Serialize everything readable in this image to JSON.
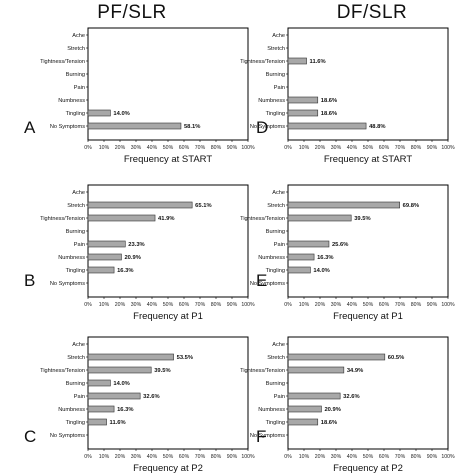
{
  "column_titles": [
    "PF/SLR",
    "DF/SLR"
  ],
  "colors": {
    "bar_fill": "#a8a8a8",
    "bar_stroke": "#333333",
    "frame": "#000000"
  },
  "chart_data": [
    {
      "type": "bar",
      "orientation": "horizontal",
      "panel": "A",
      "categories": [
        "Ache",
        "Stretch",
        "Tightness/Tension",
        "Burning",
        "Pain",
        "Numbness",
        "Tingling",
        "No Symptoms"
      ],
      "values": [
        0,
        0,
        0,
        0,
        0,
        0,
        14.0,
        58.1
      ],
      "value_labels": [
        "",
        "",
        "",
        "",
        "",
        "",
        "14.0%",
        "58.1%"
      ],
      "xlabel": "Frequency at START",
      "xticks": [
        "0%",
        "10%",
        "20%",
        "30%",
        "40%",
        "50%",
        "60%",
        "70%",
        "80%",
        "90%",
        "100%"
      ],
      "xlim": [
        0,
        100
      ]
    },
    {
      "type": "bar",
      "orientation": "horizontal",
      "panel": "D",
      "categories": [
        "Ache",
        "Stretch",
        "Tightness/Tension",
        "Burning",
        "Pain",
        "Numbness",
        "Tingling",
        "No Symptoms"
      ],
      "values": [
        0,
        0,
        11.6,
        0,
        0,
        18.6,
        18.6,
        48.8
      ],
      "value_labels": [
        "",
        "",
        "11.6%",
        "",
        "",
        "18.6%",
        "18.6%",
        "48.8%"
      ],
      "xlabel": "Frequency at START",
      "xticks": [
        "0%",
        "10%",
        "20%",
        "30%",
        "40%",
        "50%",
        "60%",
        "70%",
        "80%",
        "90%",
        "100%"
      ],
      "xlim": [
        0,
        100
      ]
    },
    {
      "type": "bar",
      "orientation": "horizontal",
      "panel": "B",
      "categories": [
        "Ache",
        "Stretch",
        "Tightness/Tension",
        "Burning",
        "Pain",
        "Numbness",
        "Tingling",
        "No Symptoms"
      ],
      "values": [
        0,
        65.1,
        41.9,
        0,
        23.3,
        20.9,
        16.3,
        0
      ],
      "value_labels": [
        "",
        "65.1%",
        "41.9%",
        "",
        "23.3%",
        "20.9%",
        "16.3%",
        ""
      ],
      "xlabel": "Frequency at P1",
      "xticks": [
        "0%",
        "10%",
        "20%",
        "30%",
        "40%",
        "50%",
        "60%",
        "70%",
        "80%",
        "90%",
        "100%"
      ],
      "xlim": [
        0,
        100
      ]
    },
    {
      "type": "bar",
      "orientation": "horizontal",
      "panel": "E",
      "categories": [
        "Ache",
        "Stretch",
        "Tightness/Tension",
        "Burning",
        "Pain",
        "Numbness",
        "Tingling",
        "No Symptoms"
      ],
      "values": [
        0,
        69.8,
        39.5,
        0,
        25.6,
        16.3,
        14.0,
        0
      ],
      "value_labels": [
        "",
        "69.8%",
        "39.5%",
        "",
        "25.6%",
        "16.3%",
        "14.0%",
        ""
      ],
      "xlabel": "Frequency at P1",
      "xticks": [
        "0%",
        "10%",
        "20%",
        "30%",
        "40%",
        "50%",
        "60%",
        "70%",
        "80%",
        "90%",
        "100%"
      ],
      "xlim": [
        0,
        100
      ]
    },
    {
      "type": "bar",
      "orientation": "horizontal",
      "panel": "C",
      "categories": [
        "Ache",
        "Stretch",
        "Tightness/Tension",
        "Burning",
        "Pain",
        "Numbness",
        "Tingling",
        "No Symptoms"
      ],
      "values": [
        0,
        53.5,
        39.5,
        14.0,
        32.6,
        16.3,
        11.6,
        0
      ],
      "value_labels": [
        "",
        "53.5%",
        "39.5%",
        "14.0%",
        "32.6%",
        "16.3%",
        "11.6%",
        ""
      ],
      "xlabel": "Frequency at P2",
      "xticks": [
        "0%",
        "10%",
        "20%",
        "30%",
        "40%",
        "50%",
        "60%",
        "70%",
        "80%",
        "90%",
        "100%"
      ],
      "xlim": [
        0,
        100
      ]
    },
    {
      "type": "bar",
      "orientation": "horizontal",
      "panel": "F",
      "categories": [
        "Ache",
        "Stretch",
        "Tightness/Tension",
        "Burning",
        "Pain",
        "Numbness",
        "Tingling",
        "No Symptoms"
      ],
      "values": [
        0,
        60.5,
        34.9,
        0,
        32.6,
        20.9,
        18.6,
        0
      ],
      "value_labels": [
        "",
        "60.5%",
        "34.9%",
        "",
        "32.6%",
        "20.9%",
        "18.6%",
        ""
      ],
      "xlabel": "Frequency at P2",
      "xticks": [
        "0%",
        "10%",
        "20%",
        "30%",
        "40%",
        "50%",
        "60%",
        "70%",
        "80%",
        "90%",
        "100%"
      ],
      "xlim": [
        0,
        100
      ]
    }
  ]
}
